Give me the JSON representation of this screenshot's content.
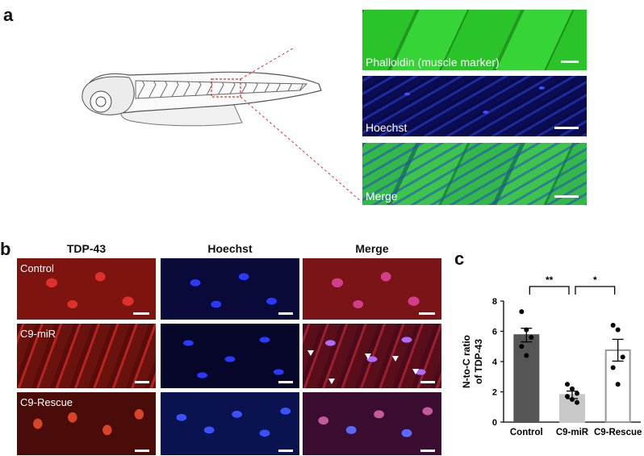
{
  "panel_a": {
    "label": "a",
    "images": [
      {
        "caption": "Phalloidin (muscle marker)"
      },
      {
        "caption": "Hoechst"
      },
      {
        "caption": "Merge"
      }
    ]
  },
  "panel_b": {
    "label": "b",
    "columns": [
      "TDP-43",
      "Hoechst",
      "Merge"
    ],
    "rows": [
      "Control",
      "C9-miR",
      "C9-Rescue"
    ]
  },
  "panel_c": {
    "label": "c",
    "chart_data": {
      "type": "bar",
      "categories": [
        "Control",
        "C9-miR",
        "C9-Rescue"
      ],
      "values": [
        5.75,
        1.8,
        4.75
      ],
      "errors": [
        0.45,
        0.25,
        0.72
      ],
      "points": [
        [
          7.3,
          6.1,
          5.6,
          5.0,
          4.4
        ],
        [
          2.5,
          2.2,
          1.9,
          1.7,
          1.5,
          1.3
        ],
        [
          6.4,
          6.1,
          4.3,
          3.6,
          2.5
        ]
      ],
      "bar_colors": [
        "#555555",
        "#c8c8c8",
        "#ffffff"
      ],
      "edge_colors": [
        "#555555",
        "#c8c8c8",
        "#999999"
      ],
      "ylabel_lines": [
        "N-to-C ratio",
        "of TDP-43"
      ],
      "ylim": [
        0,
        8
      ],
      "yticks": [
        "0",
        "2",
        "4",
        "6",
        "8"
      ],
      "significance": [
        {
          "from": 0,
          "to": 1,
          "label": "**"
        },
        {
          "from": 1,
          "to": 2,
          "label": "*"
        }
      ]
    }
  }
}
